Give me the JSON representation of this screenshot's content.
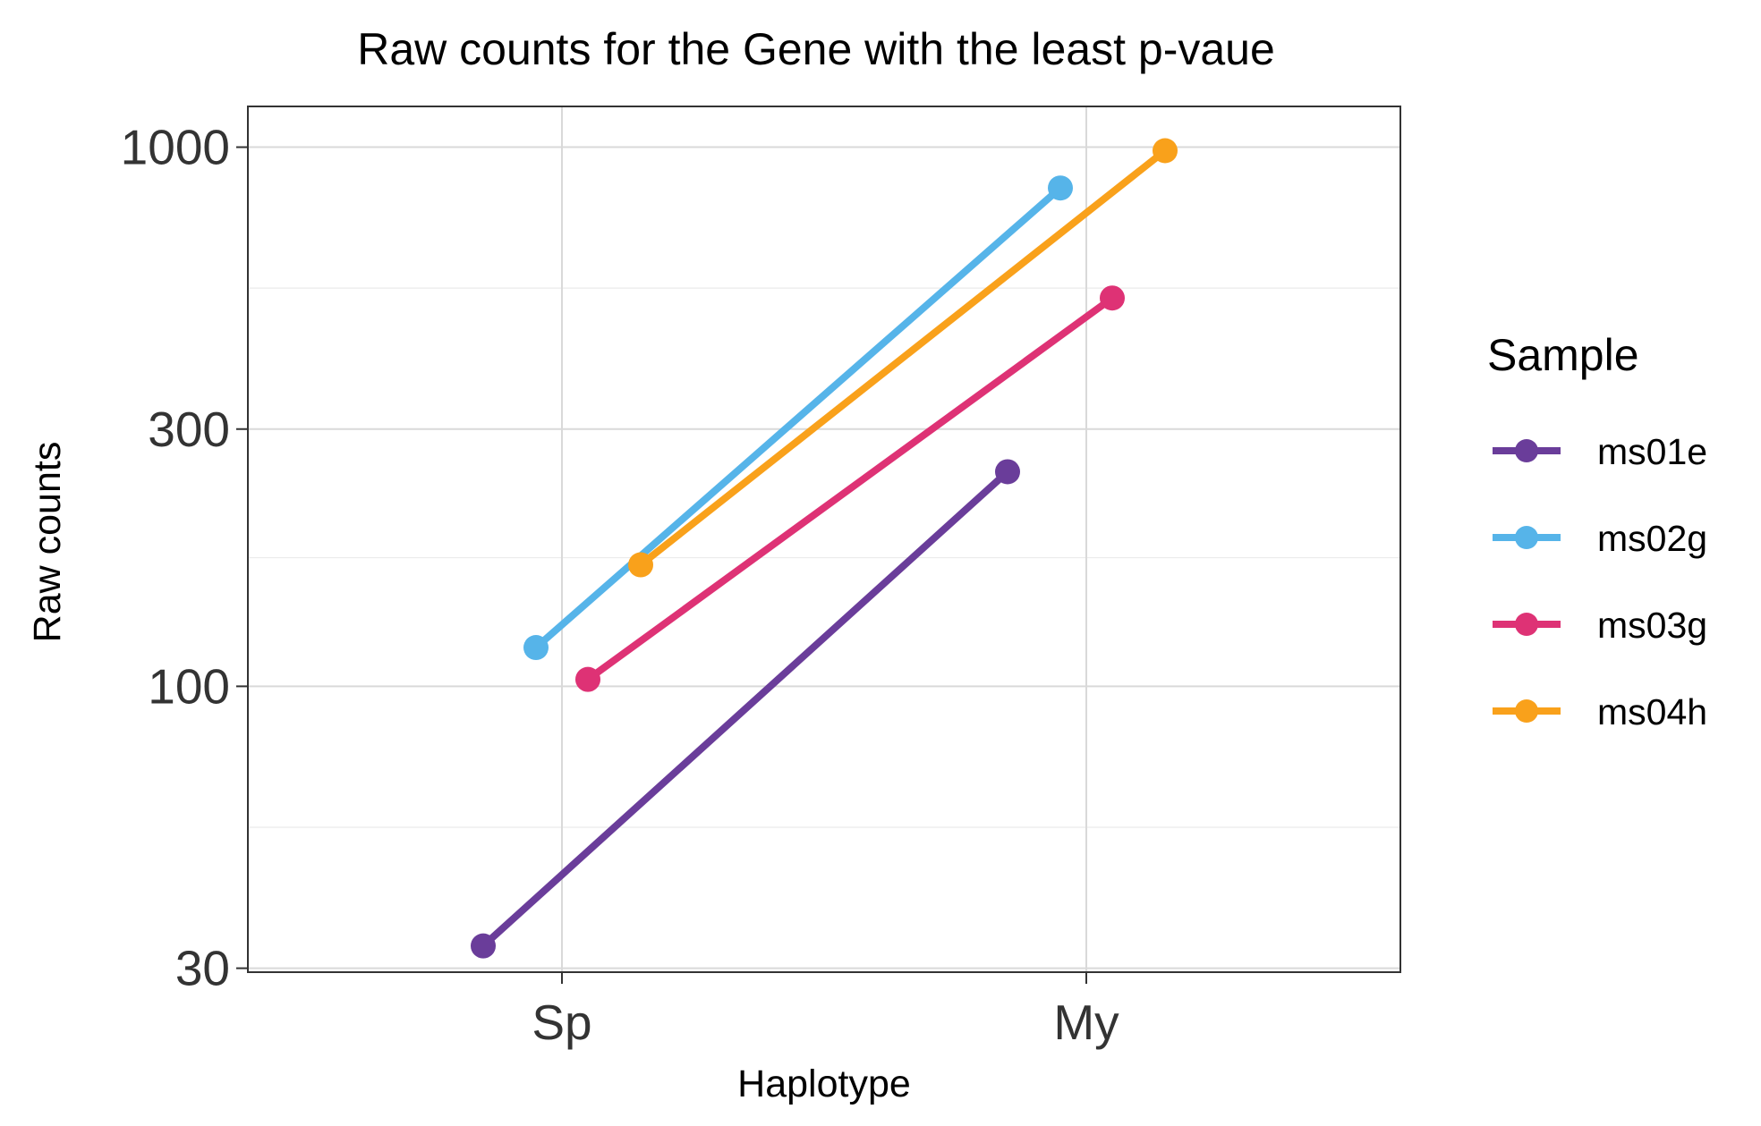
{
  "chart_data": {
    "type": "line",
    "title": "Raw counts for the Gene with the least p-vaue",
    "xlabel": "Haplotype",
    "ylabel": "Raw counts",
    "y_scale": "log10",
    "ylim": [
      29.5,
      1190
    ],
    "categories": [
      "Sp",
      "My"
    ],
    "yticks": [
      {
        "value": 30,
        "label": "30"
      },
      {
        "value": 100,
        "label": "100"
      },
      {
        "value": 300,
        "label": "300"
      },
      {
        "value": 1000,
        "label": "1000"
      }
    ],
    "grid": true,
    "legend": {
      "title": "Sample",
      "position": "right"
    },
    "series": [
      {
        "name": "ms01e",
        "color": "#6A3D9A",
        "values": [
          33,
          250
        ]
      },
      {
        "name": "ms02g",
        "color": "#56B4E9",
        "values": [
          118,
          840
        ]
      },
      {
        "name": "ms03g",
        "color": "#DE3275",
        "values": [
          103,
          525
        ]
      },
      {
        "name": "ms04h",
        "color": "#F9A11B",
        "values": [
          168,
          985
        ]
      }
    ]
  }
}
